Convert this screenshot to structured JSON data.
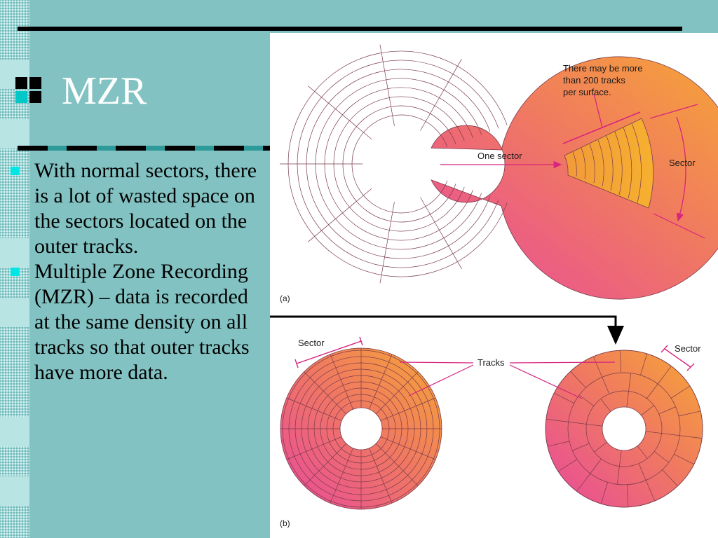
{
  "slide": {
    "title": "MZR",
    "bullets": [
      {
        "text": "With normal sectors, there is a lot of wasted space on the sectors located on the outer tracks."
      },
      {
        "text": "Multiple Zone Recording (MZR) – data is recorded at the same density on all tracks so that outer tracks have more data."
      }
    ]
  },
  "figure": {
    "note_lines": [
      "There may be more",
      "than 200 tracks",
      "per surface."
    ],
    "one_sector_label": "One sector",
    "sector_label_a": "Sector",
    "panel_a_label": "(a)",
    "sector_label_b_left": "Sector",
    "tracks_label": "Tracks",
    "sector_label_b_right": "Sector",
    "panel_b_label": "(b)"
  },
  "colors": {
    "background": "#82c2c2",
    "disk_orange": "#f6a734",
    "disk_pink": "#e8489e",
    "arrow_pink": "#d6247f",
    "bullet": "#00e5e5"
  }
}
